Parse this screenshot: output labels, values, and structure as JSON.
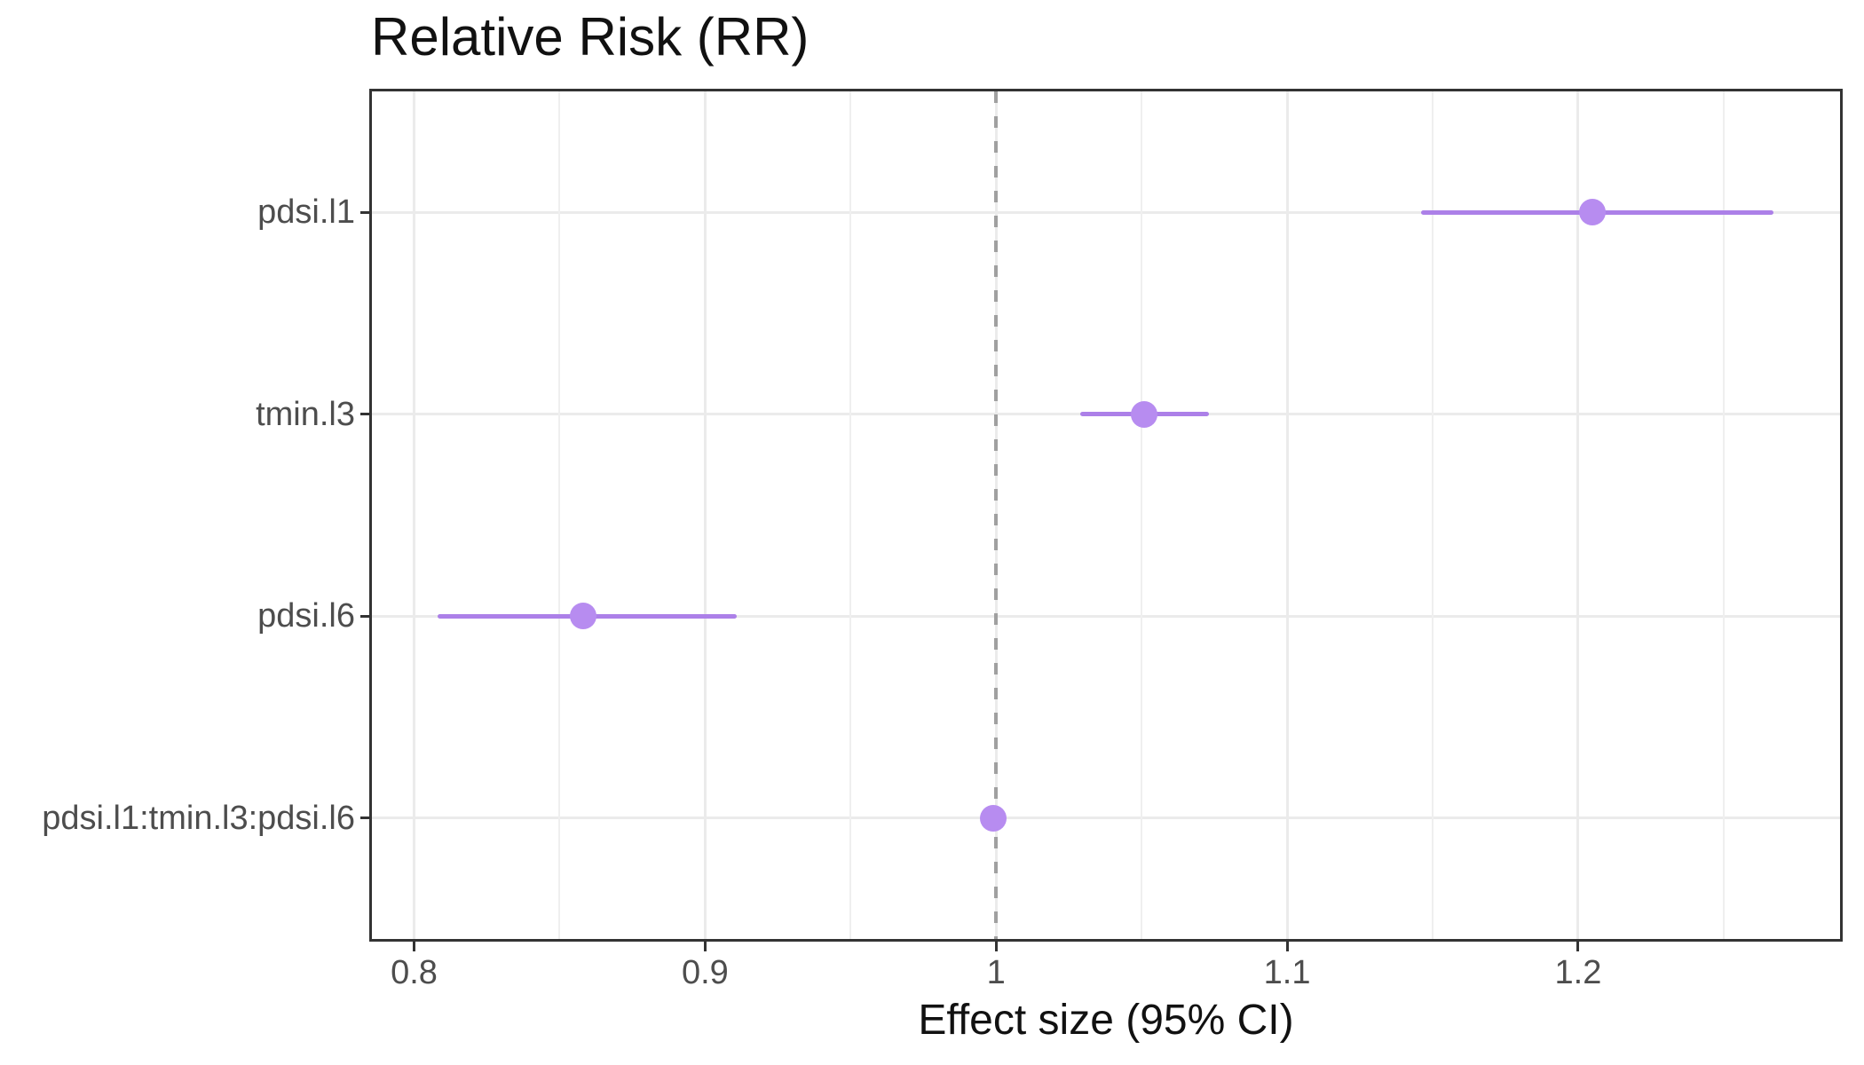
{
  "chart_data": {
    "type": "scatter",
    "subtype": "forest-pointrange",
    "title": "Relative Risk (RR)",
    "xlabel": "Effect size (95% CI)",
    "ylabel": "",
    "categories": [
      "pdsi.l1",
      "tmin.l3",
      "pdsi.l6",
      "pdsi.l1:tmin.l3:pdsi.l6"
    ],
    "points": [
      {
        "label": "pdsi.l1",
        "estimate": 1.205,
        "ci_low": 1.146,
        "ci_high": 1.267
      },
      {
        "label": "tmin.l3",
        "estimate": 1.051,
        "ci_low": 1.029,
        "ci_high": 1.073
      },
      {
        "label": "pdsi.l6",
        "estimate": 0.858,
        "ci_low": 0.808,
        "ci_high": 0.911
      },
      {
        "label": "pdsi.l1:tmin.l3:pdsi.l6",
        "estimate": 0.999,
        "ci_low": 0.995,
        "ci_high": 1.003
      }
    ],
    "x_ticks": [
      0.8,
      0.9,
      1.0,
      1.1,
      1.2
    ],
    "x_tick_labels": [
      "0.8",
      "0.9",
      "1",
      "1.1",
      "1.2"
    ],
    "x_minor_ticks": [
      0.85,
      0.95,
      1.05,
      1.15,
      1.25
    ],
    "xlim": [
      0.7855,
      1.29
    ],
    "reference_line_x": 1.0,
    "grid": true,
    "legend": "none"
  },
  "colors": {
    "point": "#b78cf0",
    "ci_line": "#ac80e8",
    "reference_line": "#a0a0a0",
    "grid_major": "#ebebeb",
    "grid_minor": "#efefef",
    "panel_border": "#333333",
    "axis_text": "#4d4d4d",
    "title_text": "#111111",
    "background": "#ffffff"
  }
}
